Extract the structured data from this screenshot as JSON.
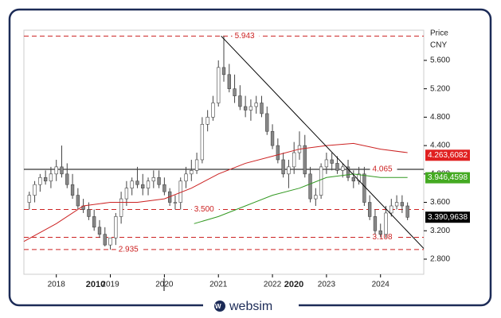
{
  "chart_data": {
    "type": "candlestick",
    "price_label": "Price",
    "currency_label": "CNY",
    "xlim": [
      2017.4,
      2024.8
    ],
    "ylim": [
      2.587,
      6.025
    ],
    "xticks": [
      2018,
      2019,
      2020,
      2021,
      2022,
      2023,
      2024
    ],
    "x_group_labels": [
      "2010",
      "2020"
    ],
    "yticks": [
      {
        "value": 2.8,
        "label": "2.800"
      },
      {
        "value": 3.2,
        "label": "3.200"
      },
      {
        "value": 3.6,
        "label": "3.600"
      },
      {
        "value": 4.0,
        "label": "4.000"
      },
      {
        "value": 4.4,
        "label": "4.400"
      },
      {
        "value": 4.8,
        "label": "4.800"
      },
      {
        "value": 5.2,
        "label": "5.200"
      },
      {
        "value": 5.6,
        "label": "5.600"
      }
    ],
    "candle_color": "#888888",
    "x": [
      2017.5,
      2017.6,
      2017.7,
      2017.8,
      2017.9,
      2018.0,
      2018.1,
      2018.2,
      2018.3,
      2018.4,
      2018.5,
      2018.6,
      2018.7,
      2018.8,
      2018.9,
      2019.0,
      2019.1,
      2019.2,
      2019.3,
      2019.4,
      2019.5,
      2019.6,
      2019.7,
      2019.8,
      2019.9,
      2020.0,
      2020.1,
      2020.2,
      2020.3,
      2020.4,
      2020.5,
      2020.6,
      2020.7,
      2020.8,
      2020.9,
      2021.0,
      2021.1,
      2021.2,
      2021.3,
      2021.4,
      2021.5,
      2021.6,
      2021.7,
      2021.8,
      2021.9,
      2022.0,
      2022.1,
      2022.2,
      2022.3,
      2022.4,
      2022.5,
      2022.6,
      2022.7,
      2022.8,
      2022.9,
      2023.0,
      2023.1,
      2023.2,
      2023.3,
      2023.4,
      2023.5,
      2023.6,
      2023.7,
      2023.8,
      2023.9,
      2024.0,
      2024.1,
      2024.2,
      2024.3,
      2024.4,
      2024.5
    ],
    "open": [
      3.6,
      3.7,
      3.85,
      3.95,
      3.9,
      4.0,
      4.1,
      4.0,
      3.85,
      3.7,
      3.55,
      3.5,
      3.4,
      3.25,
      3.15,
      3.0,
      3.1,
      3.4,
      3.65,
      3.8,
      3.9,
      3.85,
      3.8,
      3.9,
      3.95,
      3.85,
      3.75,
      3.6,
      3.6,
      3.9,
      4.0,
      4.05,
      4.2,
      4.7,
      4.8,
      5.0,
      5.5,
      5.4,
      5.2,
      5.1,
      4.95,
      4.9,
      4.95,
      5.0,
      4.85,
      4.6,
      4.4,
      4.2,
      4.0,
      4.1,
      4.3,
      4.4,
      4.0,
      3.65,
      3.7,
      4.1,
      4.2,
      4.15,
      4.05,
      4.1,
      3.95,
      3.9,
      4.0,
      3.6,
      3.4,
      3.2,
      3.15,
      3.45,
      3.55,
      3.6,
      3.55
    ],
    "high": [
      3.75,
      3.9,
      4.0,
      4.05,
      4.1,
      4.2,
      4.4,
      4.15,
      4.0,
      3.8,
      3.65,
      3.6,
      3.5,
      3.35,
      3.25,
      3.1,
      3.45,
      3.75,
      3.9,
      3.95,
      4.1,
      4.0,
      3.95,
      4.05,
      4.05,
      3.95,
      3.8,
      3.7,
      3.95,
      4.1,
      4.2,
      4.3,
      4.8,
      4.9,
      5.1,
      5.6,
      5.943,
      5.55,
      5.4,
      5.25,
      5.1,
      5.05,
      5.1,
      5.1,
      4.95,
      4.7,
      4.5,
      4.3,
      4.2,
      4.45,
      4.6,
      4.55,
      4.1,
      3.8,
      4.15,
      4.3,
      4.3,
      4.25,
      4.15,
      4.2,
      4.05,
      4.1,
      4.1,
      3.7,
      3.5,
      3.3,
      3.55,
      3.65,
      3.7,
      3.7,
      3.6
    ],
    "low": [
      3.5,
      3.6,
      3.75,
      3.85,
      3.8,
      3.9,
      3.95,
      3.8,
      3.65,
      3.5,
      3.45,
      3.35,
      3.2,
      3.1,
      2.98,
      2.935,
      3.0,
      3.3,
      3.55,
      3.7,
      3.8,
      3.7,
      3.7,
      3.8,
      3.8,
      3.7,
      3.55,
      3.5,
      3.5,
      3.8,
      3.9,
      4.0,
      4.15,
      4.6,
      4.75,
      4.95,
      5.3,
      5.15,
      5.0,
      4.9,
      4.8,
      4.75,
      4.85,
      4.8,
      4.55,
      4.35,
      4.15,
      3.95,
      3.8,
      4.0,
      4.2,
      3.95,
      3.6,
      3.55,
      3.65,
      4.0,
      4.05,
      4.0,
      3.95,
      3.9,
      3.8,
      3.85,
      3.55,
      3.35,
      3.15,
      3.108,
      3.1,
      3.4,
      3.5,
      3.45,
      3.35
    ],
    "close": [
      3.7,
      3.85,
      3.95,
      3.9,
      4.0,
      4.1,
      4.0,
      3.85,
      3.7,
      3.55,
      3.5,
      3.4,
      3.25,
      3.15,
      3.0,
      3.1,
      3.4,
      3.65,
      3.8,
      3.9,
      3.85,
      3.8,
      3.9,
      3.95,
      3.85,
      3.75,
      3.6,
      3.6,
      3.9,
      4.0,
      4.05,
      4.2,
      4.7,
      4.8,
      5.0,
      5.5,
      5.4,
      5.2,
      5.1,
      4.95,
      4.9,
      4.95,
      5.0,
      4.85,
      4.6,
      4.4,
      4.2,
      4.0,
      4.1,
      4.3,
      4.4,
      4.0,
      3.65,
      3.7,
      4.1,
      4.2,
      4.15,
      4.05,
      4.1,
      3.95,
      3.9,
      4.0,
      3.6,
      3.4,
      3.2,
      3.15,
      3.45,
      3.55,
      3.6,
      3.55,
      3.39
    ],
    "series": [
      {
        "color": "#cc2222",
        "x": [
          2017.4,
          2018.0,
          2018.5,
          2019.0,
          2019.5,
          2020.0,
          2020.5,
          2021.0,
          2021.5,
          2022.0,
          2022.5,
          2023.0,
          2023.5,
          2024.0,
          2024.5
        ],
        "values": [
          3.05,
          3.3,
          3.55,
          3.6,
          3.6,
          3.65,
          3.8,
          4.0,
          4.15,
          4.25,
          4.35,
          4.4,
          4.43,
          4.35,
          4.3
        ]
      },
      {
        "color": "#339922",
        "x": [
          2020.55,
          2021.0,
          2021.5,
          2022.0,
          2022.5,
          2023.0,
          2023.5,
          2024.0,
          2024.5
        ],
        "values": [
          3.3,
          3.4,
          3.55,
          3.7,
          3.8,
          3.95,
          4.0,
          3.95,
          3.95
        ]
      }
    ],
    "levels": [
      {
        "value": 5.943,
        "label": "5.943",
        "color": "#cc2222",
        "x": 2021.3
      },
      {
        "value": 3.5,
        "label": "3.500",
        "color": "#cc2222",
        "x": 2020.55
      },
      {
        "value": 3.108,
        "label": "3.108",
        "color": "#cc2222",
        "x": 2023.85
      },
      {
        "value": 2.935,
        "label": "2.935",
        "color": "#cc2222",
        "x": 2019.15
      },
      {
        "value": 4.065,
        "label": "4.065",
        "color": "#000000",
        "x": 2023.85
      }
    ],
    "trendline": {
      "x": [
        2021.05,
        2024.8
      ],
      "values": [
        5.943,
        2.95
      ]
    },
    "last_values": [
      {
        "value": 4.2636082,
        "label": "4.263,6082",
        "color": "#e02020"
      },
      {
        "value": 3.9464598,
        "label": "3.946,4598",
        "color": "#44aa22"
      },
      {
        "value": 3.3909638,
        "label": "3.390,9638",
        "color": "#000000"
      }
    ]
  },
  "footer": {
    "logo_text": "websim"
  }
}
